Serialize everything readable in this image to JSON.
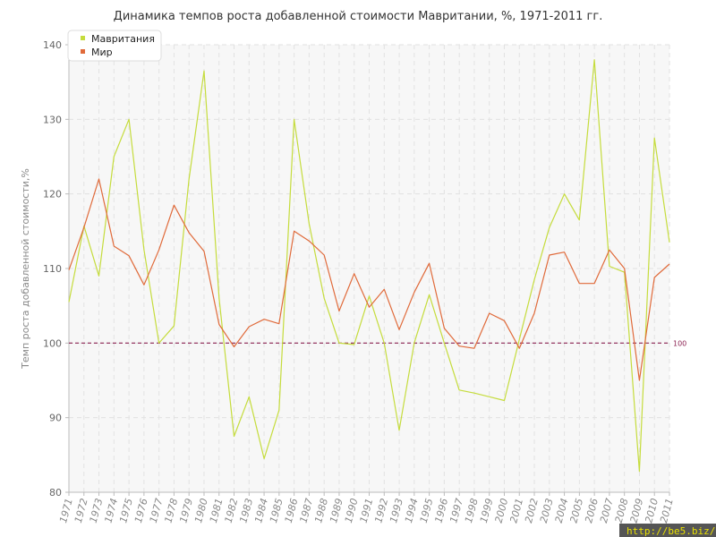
{
  "chart_data": {
    "type": "line",
    "title": "Динамика темпов роста добавленной стоимости Мавритании, %, 1971-2011 гг.",
    "ylabel": "Темп роста добавленной стоимости,%",
    "xlabel": "",
    "ylim": [
      80,
      140
    ],
    "yticks": [
      80,
      90,
      100,
      110,
      120,
      130,
      140
    ],
    "grid": true,
    "legend_position": "top-left",
    "reference_line": {
      "value": 100,
      "label": "100",
      "color": "#8b2252"
    },
    "categories": [
      "1971",
      "1972",
      "1973",
      "1974",
      "1975",
      "1976",
      "1977",
      "1978",
      "1979",
      "1980",
      "1981",
      "1982",
      "1983",
      "1984",
      "1985",
      "1986",
      "1987",
      "1988",
      "1989",
      "1990",
      "1991",
      "1992",
      "1993",
      "1994",
      "1995",
      "1996",
      "1997",
      "1998",
      "1999",
      "2000",
      "2001",
      "2002",
      "2003",
      "2004",
      "2005",
      "2006",
      "2007",
      "2008",
      "2009",
      "2010",
      "2011"
    ],
    "series": [
      {
        "name": "Мавритания",
        "color": "#c5dc3c",
        "values": [
          105.5,
          115.7,
          109,
          125,
          130,
          112.5,
          100,
          102.3,
          122,
          136.5,
          106,
          87.5,
          92.8,
          84.5,
          91,
          130,
          116,
          106,
          100,
          99.8,
          106.3,
          100,
          88.3,
          100,
          106.5,
          100,
          93.7,
          93.3,
          92.8,
          92.3,
          100.5,
          108.5,
          115.5,
          120,
          116.5,
          138,
          110.3,
          109.5,
          82.8,
          127.5,
          113.5
        ]
      },
      {
        "name": "Мир",
        "color": "#e06a3a",
        "values": [
          109.8,
          115.5,
          122,
          113,
          111.7,
          107.8,
          112.5,
          118.5,
          114.8,
          112.3,
          102.5,
          99.5,
          102.2,
          103.2,
          102.6,
          115,
          113.7,
          111.8,
          104.3,
          109.3,
          104.8,
          107.2,
          101.8,
          106.8,
          110.7,
          102,
          99.6,
          99.3,
          104,
          103,
          99.3,
          104,
          111.8,
          112.2,
          108,
          108,
          112.5,
          110,
          95,
          108.8,
          110.6
        ]
      }
    ]
  },
  "watermark": "http://be5.biz/"
}
